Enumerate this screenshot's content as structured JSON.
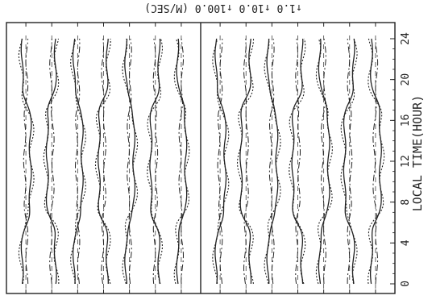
{
  "header_legend": {
    "rotated": true,
    "text": "↑1.0    ↑10.0    ↑100.0 (M/SEC)"
  },
  "xaxis": {
    "label": "LOCAL TIME(HOUR)",
    "ticks": [
      "0",
      "4",
      "8",
      "12",
      "16",
      "20",
      "24"
    ]
  },
  "chart_data": {
    "type": "line",
    "title": "",
    "xlabel": "LOCAL TIME(HOUR)",
    "xlim": [
      0,
      24
    ],
    "x_ticks": [
      0,
      4,
      8,
      12,
      16,
      20,
      24
    ],
    "panels": [
      {
        "name": "left",
        "traces": 7
      },
      {
        "name": "right",
        "traces": 7
      }
    ],
    "line_styles": [
      "solid",
      "dotted",
      "dash-dot"
    ],
    "scale_markers": [
      "1.0",
      "10.0",
      "100.0"
    ],
    "unit": "(M/SEC)",
    "grid": true,
    "orientation": "rotated-90",
    "colors": {
      "ink": "#222222",
      "background": "#ffffff"
    }
  }
}
